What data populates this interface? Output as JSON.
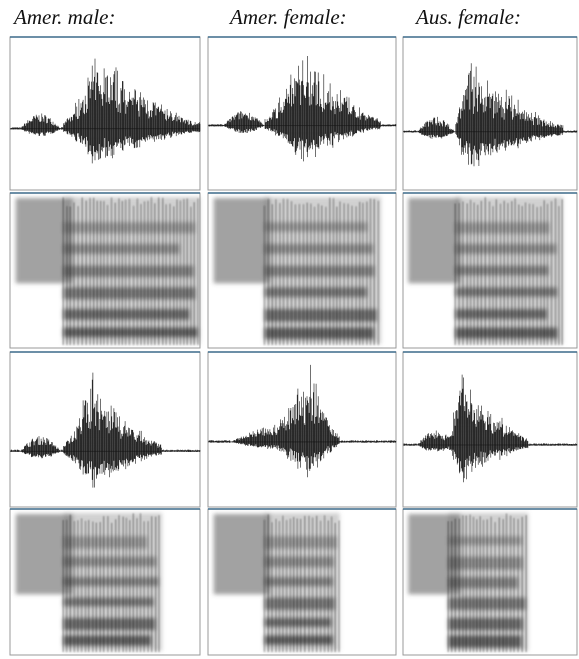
{
  "headers": [
    "Amer. male:",
    "Amer. female:",
    "Aus. female:"
  ]
}
